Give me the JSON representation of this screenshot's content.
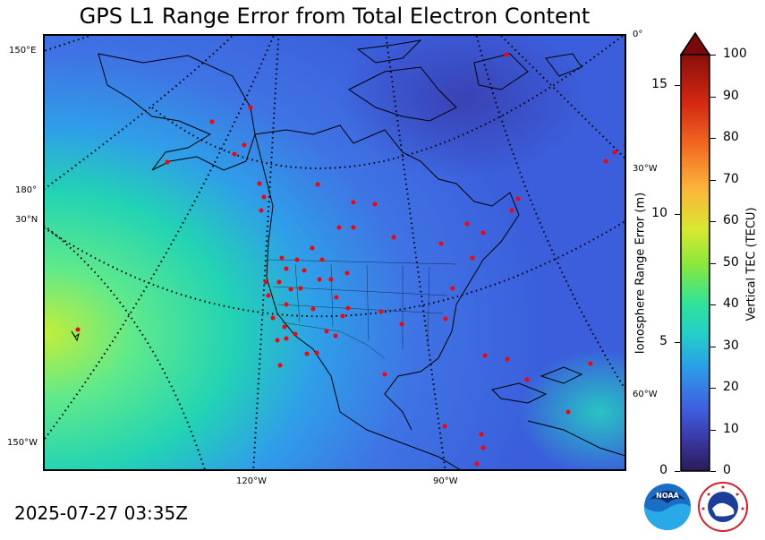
{
  "title": "GPS L1 Range Error from Total Electron Content",
  "timestamp": "2025-07-27 03:35Z",
  "left_axis": {
    "label": "Ionosphere Range Error (m)",
    "ticks": [
      "0",
      "5",
      "10",
      "15"
    ],
    "max": 16.2
  },
  "right_axis": {
    "label": "Vertical TEC (TECU)",
    "ticks": [
      "0",
      "10",
      "20",
      "30",
      "40",
      "50",
      "60",
      "70",
      "80",
      "90",
      "100"
    ],
    "max": 100
  },
  "graticule_labels": {
    "e150": "150°E",
    "lon180": "180°",
    "n30": "30°N",
    "w150": "150°W",
    "zero": "0°",
    "w30": "30°W",
    "w60": "60°W",
    "w120": "120°W",
    "w90": "90°W"
  },
  "logos": [
    "noaa-logo",
    "national-weather-service-logo"
  ],
  "colors": {
    "background_map": "#3f6fe6",
    "low_tec": "#2e2b8f",
    "mid_tec": "#23d7a7",
    "high_tec": "#b9f23a",
    "station": "#ff0000",
    "colorbar_top": "#7a0a0a"
  }
}
